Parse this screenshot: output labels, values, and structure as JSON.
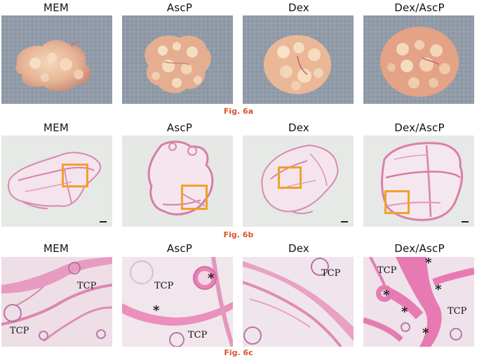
{
  "columns": [
    "MEM",
    "AscP",
    "Dex",
    "Dex/AscP"
  ],
  "captions": {
    "a": "Fig. 6a",
    "b": "Fig. 6b",
    "c": "Fig. 6c"
  },
  "labels": {
    "tcp": "TCP",
    "star": "*"
  },
  "colors": {
    "caption": "#d9542b",
    "highlight_box": "#f0a12a",
    "tissue_pink": "#e58ab0",
    "tissue_light": "#f2d9e3",
    "photo_background": "#8c96a4"
  }
}
